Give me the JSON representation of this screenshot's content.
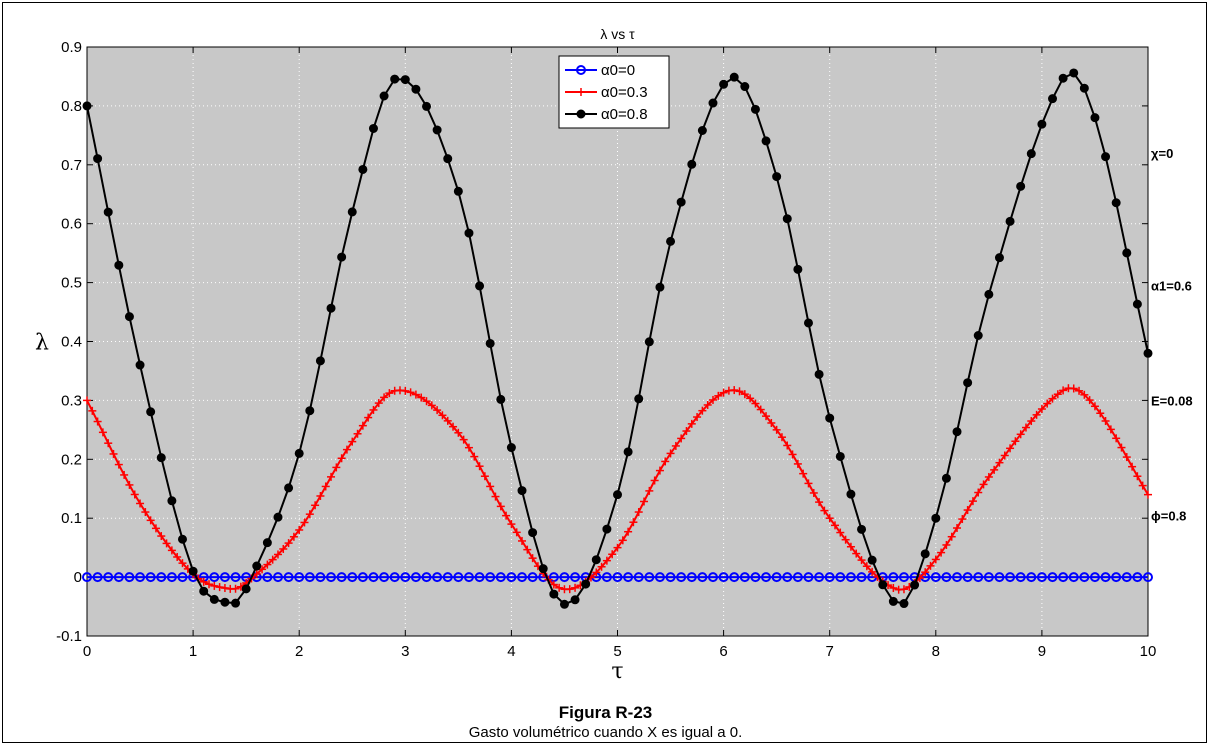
{
  "chart_data": {
    "type": "line",
    "title": "λ vs τ",
    "xlabel": "τ",
    "ylabel": "λ",
    "xlim": [
      0,
      10
    ],
    "ylim": [
      -0.1,
      0.9
    ],
    "xticks": [
      "0",
      "1",
      "2",
      "3",
      "4",
      "5",
      "6",
      "7",
      "8",
      "9",
      "10"
    ],
    "yticks": [
      "-0.1",
      "0",
      "0.1",
      "0.2",
      "0.3",
      "0.4",
      "0.5",
      "0.6",
      "0.7",
      "0.8",
      "0.9"
    ],
    "grid": true,
    "legend_position": "top-center",
    "x": [
      0,
      0.5,
      1,
      1.35,
      1.5,
      2,
      2.5,
      2.92,
      3.5,
      4,
      4.48,
      5,
      5.5,
      6.06,
      6.5,
      7,
      7.62,
      8,
      8.5,
      9.2,
      9.5,
      10
    ],
    "series": [
      {
        "name": "α0=0",
        "color": "#0000ff",
        "marker": "circle-open",
        "values": [
          0,
          0,
          0,
          0,
          0,
          0,
          0,
          0,
          0,
          0,
          0,
          0,
          0,
          0,
          0,
          0,
          0,
          0,
          0,
          0,
          0,
          0
        ]
      },
      {
        "name": "α0=0.3",
        "color": "#ff0000",
        "marker": "plus",
        "values": [
          0.3,
          0.125,
          0.005,
          -0.02,
          -0.01,
          0.08,
          0.23,
          0.317,
          0.245,
          0.09,
          -0.02,
          0.05,
          0.21,
          0.317,
          0.25,
          0.1,
          -0.02,
          0.03,
          0.17,
          0.317,
          0.29,
          0.14
        ]
      },
      {
        "name": "α0=0.8",
        "color": "#000000",
        "marker": "dot",
        "values": [
          0.8,
          0.36,
          0.01,
          -0.045,
          -0.02,
          0.21,
          0.62,
          0.847,
          0.655,
          0.22,
          -0.045,
          0.14,
          0.57,
          0.847,
          0.68,
          0.27,
          -0.045,
          0.1,
          0.48,
          0.847,
          0.78,
          0.38
        ]
      }
    ],
    "annotations": [
      "χ=0",
      "α1=0.6",
      "E=0.08",
      "ϕ=0.8"
    ]
  },
  "caption": {
    "figure": "Figura R-23",
    "text": "Gasto volumétrico  cuando X es igual a 0."
  }
}
